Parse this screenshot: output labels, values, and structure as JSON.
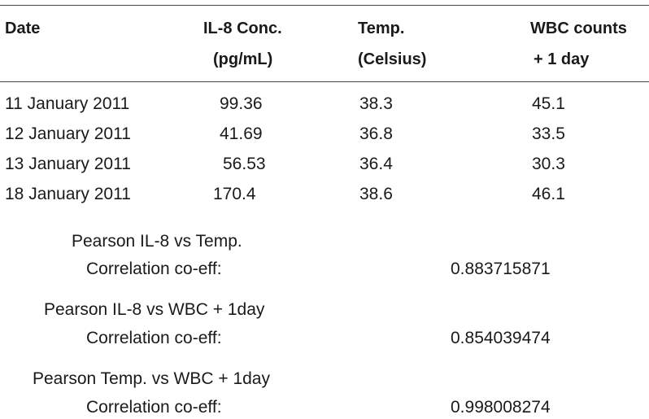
{
  "table": {
    "headers": [
      {
        "line1": "Date",
        "line2": ""
      },
      {
        "line1": "IL-8 Conc.",
        "line2": "(pg/mL)"
      },
      {
        "line1": "Temp.",
        "line2": "(Celsius)"
      },
      {
        "line1": "WBC counts",
        "line2": "+ 1 day"
      }
    ],
    "rows": [
      {
        "date": "11 January 2011",
        "il8": "99.36",
        "temp": "38.3",
        "wbc": "45.1"
      },
      {
        "date": "12 January 2011",
        "il8": "41.69",
        "temp": "36.8",
        "wbc": "33.5"
      },
      {
        "date": "13 January 2011",
        "il8": "56.53",
        "temp": "36.4",
        "wbc": "30.3"
      },
      {
        "date": "18 January 2011",
        "il8": "170.4",
        "temp": "38.6",
        "wbc": "46.1"
      }
    ]
  },
  "correlations": [
    {
      "title": "Pearson IL-8 vs Temp.",
      "label": "Correlation co-eff:",
      "value": "0.883715871"
    },
    {
      "title": "Pearson IL-8 vs WBC + 1day",
      "label": "Correlation co-eff:",
      "value": "0.854039474"
    },
    {
      "title": "Pearson Temp. vs WBC + 1day",
      "label": "Correlation co-eff:",
      "value": "0.998008274"
    }
  ]
}
